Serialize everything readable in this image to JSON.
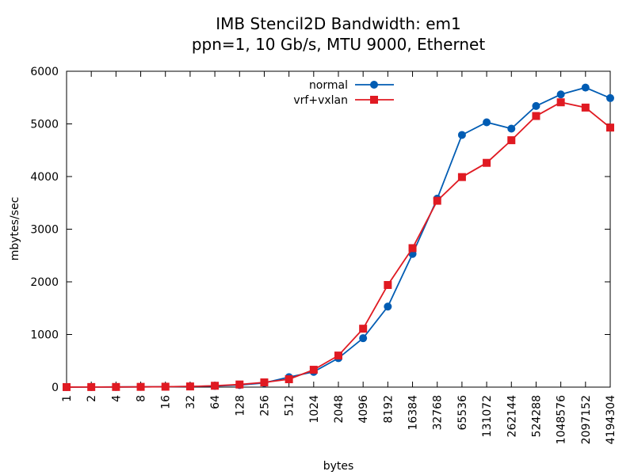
{
  "chart_data": {
    "type": "line",
    "title": "IMB Stencil2D Bandwidth: em1",
    "subtitle": "ppn=1, 10 Gb/s, MTU 9000, Ethernet",
    "xlabel": "bytes",
    "ylabel": "mbytes/sec",
    "ylim": [
      0,
      6000
    ],
    "yticks": [
      "0",
      "1000",
      "2000",
      "3000",
      "4000",
      "5000",
      "6000"
    ],
    "categories": [
      "1",
      "2",
      "4",
      "8",
      "16",
      "32",
      "64",
      "128",
      "256",
      "512",
      "1024",
      "2048",
      "4096",
      "8192",
      "16384",
      "32768",
      "65536",
      "131072",
      "262144",
      "524288",
      "1048576",
      "2097152",
      "4194304"
    ],
    "legend_position": "top-center",
    "grid": false,
    "series": [
      {
        "name": "normal",
        "color": "#005cb3",
        "marker": "circle",
        "values": [
          1,
          2,
          3,
          5,
          8,
          13,
          22,
          40,
          80,
          190,
          290,
          550,
          930,
          1530,
          2530,
          3580,
          4790,
          5030,
          4910,
          5340,
          5560,
          5690,
          5490
        ]
      },
      {
        "name": "vrf+vxlan",
        "color": "#e01a22",
        "marker": "square",
        "values": [
          1,
          2,
          3,
          5,
          8,
          13,
          26,
          50,
          90,
          150,
          330,
          600,
          1110,
          1940,
          2640,
          3540,
          3990,
          4260,
          4690,
          5150,
          5410,
          5310,
          4930
        ]
      }
    ]
  }
}
